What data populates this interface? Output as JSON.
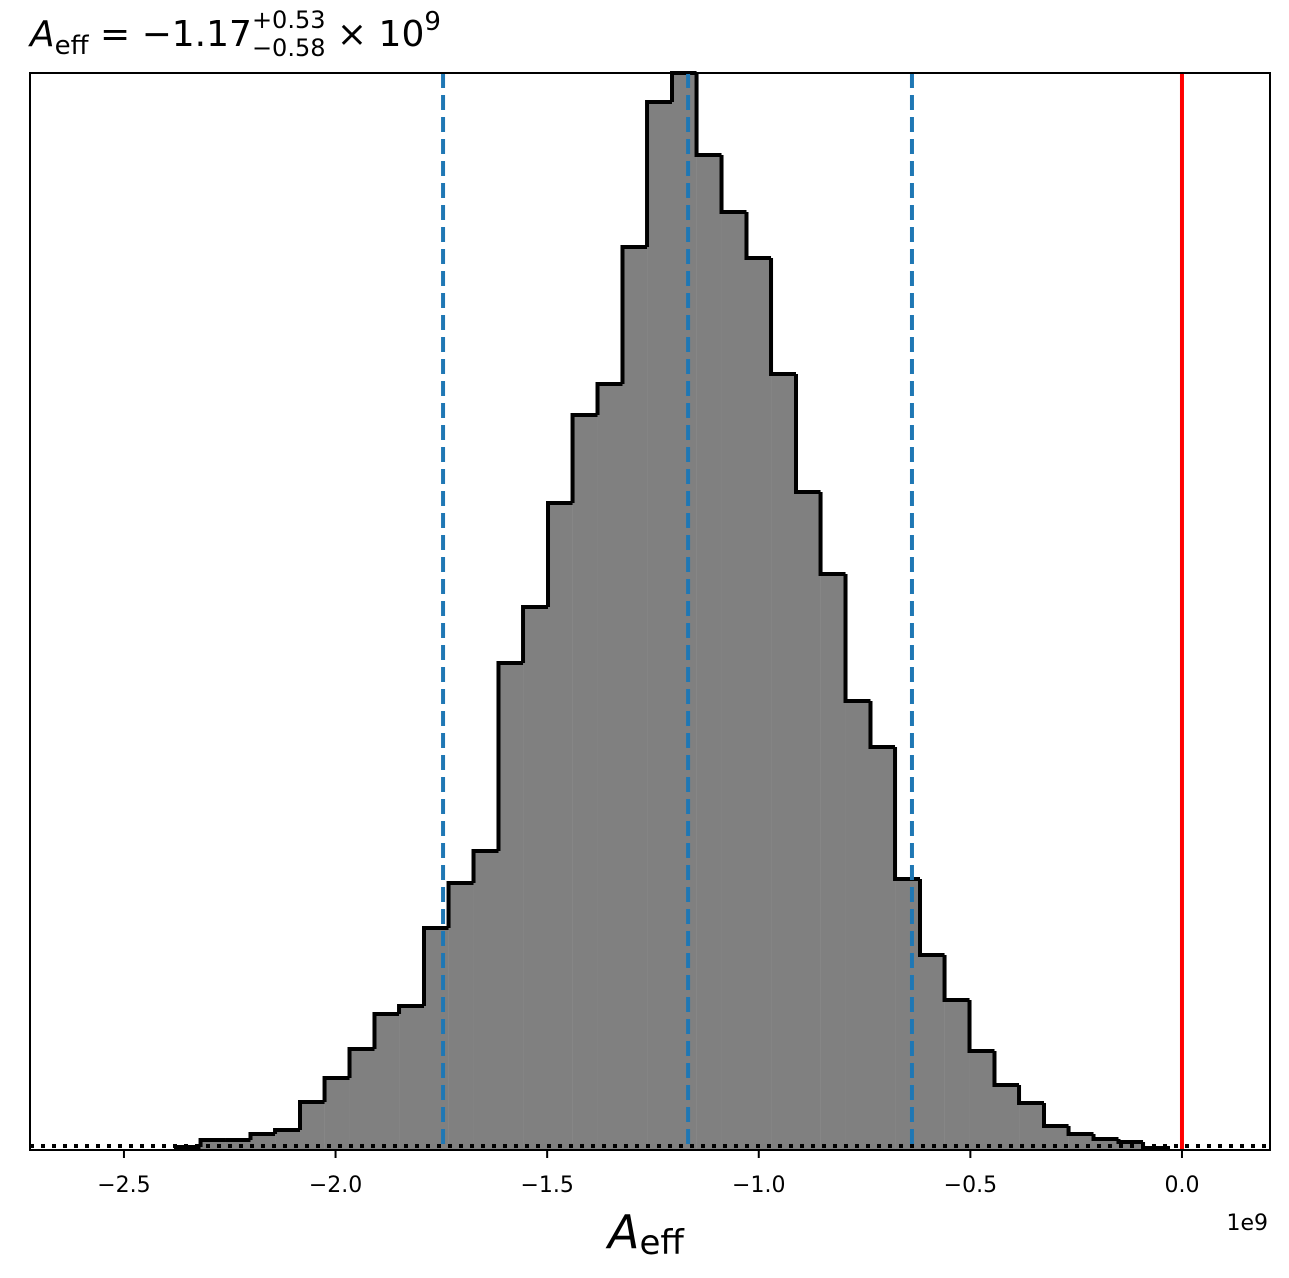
{
  "chart_data": {
    "type": "histogram",
    "title_parts": {
      "symbol": "A",
      "symbol_sub": "eff",
      "main": " = −1.17",
      "sup": "+0.53",
      "sub": "−0.58",
      "tail": " × 10",
      "exp": "9"
    },
    "xlabel_parts": {
      "symbol": "A",
      "symbol_sub": "eff"
    },
    "x_offset_label": "1e9",
    "bins": [
      -2.377,
      -2.319,
      -2.26,
      -2.201,
      -2.143,
      -2.084,
      -2.026,
      -1.967,
      -1.908,
      -1.85,
      -1.791,
      -1.733,
      -1.674,
      -1.615,
      -1.557,
      -1.498,
      -1.44,
      -1.381,
      -1.322,
      -1.264,
      -1.205,
      -1.147,
      -1.088,
      -1.029,
      -0.971,
      -0.912,
      -0.854,
      -0.795,
      -0.736,
      -0.678,
      -0.619,
      -0.561,
      -0.502,
      -0.443,
      -0.385,
      -0.326,
      -0.268,
      -0.209,
      -0.15,
      -0.092,
      -0.033
    ],
    "values": [
      3,
      10,
      10,
      16,
      20,
      48,
      72,
      101,
      136,
      144,
      222,
      267,
      299,
      487,
      543,
      647,
      735,
      766,
      903,
      1048,
      1077,
      995,
      938,
      892,
      776,
      658,
      576,
      449,
      403,
      271,
      195,
      150,
      99,
      65,
      47,
      24,
      16,
      11,
      8,
      2
    ],
    "color": "#808080",
    "edgecolor": "#000000",
    "xlim": [
      -2.722,
      0.208
    ],
    "ylim": [
      0,
      1077
    ],
    "xticks": [
      {
        "value": -2.5,
        "label": "−2.5"
      },
      {
        "value": -2.0,
        "label": "−2.0"
      },
      {
        "value": -1.5,
        "label": "−1.5"
      },
      {
        "value": -1.0,
        "label": "−1.0"
      },
      {
        "value": -0.5,
        "label": "−0.5"
      },
      {
        "value": 0.0,
        "label": "0.0"
      }
    ],
    "quantile_lines": {
      "values": [
        -1.746,
        -1.167,
        -0.638
      ],
      "color": "#1f77b4"
    },
    "truth_line": {
      "value": 0.0,
      "color": "#ff0000"
    },
    "baseline_dotted": 4
  }
}
